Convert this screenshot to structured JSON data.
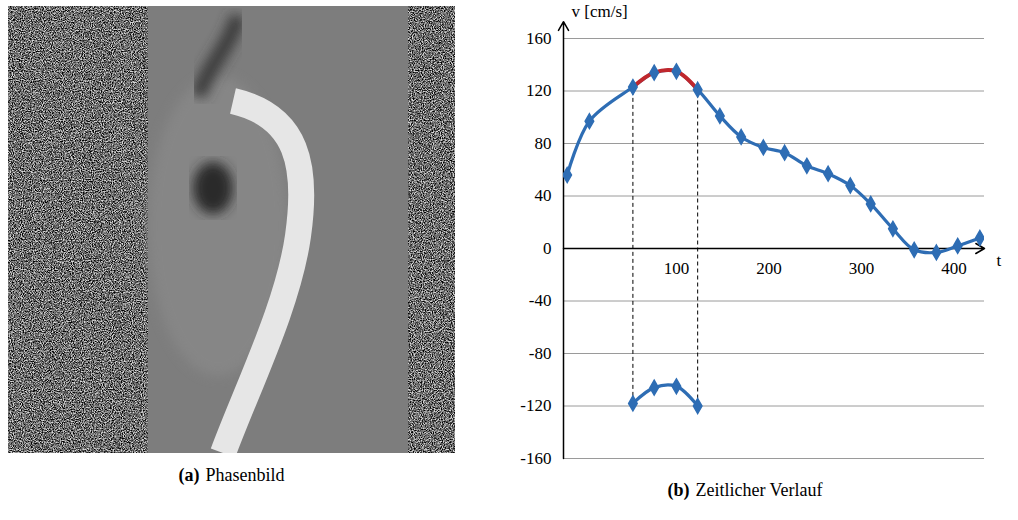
{
  "image_panel": {
    "caption": {
      "label": "(a)",
      "text": "Phasenbild"
    }
  },
  "chart_data": {
    "type": "line",
    "caption": {
      "label": "(b)",
      "text": "Zeitlicher Verlauf"
    },
    "xlabel": "t",
    "ylabel": "v [cm/s]",
    "xlim": [
      -22,
      433
    ],
    "ylim": [
      -160,
      160
    ],
    "xticks": [
      100,
      200,
      300,
      400
    ],
    "yticks": [
      -160,
      -120,
      -80,
      -40,
      0,
      40,
      80,
      120,
      160
    ],
    "grid": true,
    "series": [
      {
        "x": [
          -18,
          6,
          53,
          76,
          100,
          123,
          147,
          170,
          194,
          217,
          241,
          264,
          288,
          310,
          334,
          357,
          381,
          404,
          428
        ],
        "values": [
          56,
          97,
          123,
          134,
          135,
          121,
          101,
          85,
          77,
          73,
          63,
          57,
          48,
          34,
          15,
          -1,
          -3,
          2,
          8
        ],
        "color": "#2e6db4",
        "marker": "diamond",
        "line_style": "solid"
      },
      {
        "x": [
          53,
          76,
          100,
          123
        ],
        "values": [
          123,
          134,
          135,
          121
        ],
        "color": "#c0272d",
        "marker": "none",
        "line_style": "solid"
      },
      {
        "x": [
          53,
          76,
          100,
          123
        ],
        "values": [
          -118,
          -106,
          -105,
          -120
        ],
        "color": "#2e6db4",
        "marker": "diamond",
        "line_style": "solid"
      }
    ]
  }
}
